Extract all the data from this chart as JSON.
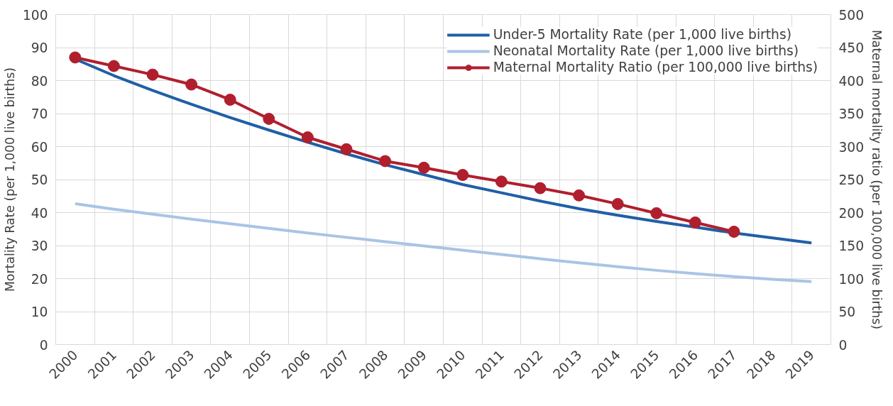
{
  "chart_data": {
    "type": "line",
    "ylabel": "Mortality Rate (per 1,000 live births)",
    "y2label": "Maternal mortality ratio (per 100,000 live births)",
    "categories": [
      "2000",
      "2001",
      "2002",
      "2003",
      "2004",
      "2005",
      "2006",
      "2007",
      "2008",
      "2009",
      "2010",
      "2011",
      "2012",
      "2013",
      "2014",
      "2015",
      "2016",
      "2017",
      "2018",
      "2019"
    ],
    "series": [
      {
        "name": "Under-5 Mortality Rate (per 1,000 live births)",
        "color": "#1f5fa6",
        "marker": "none",
        "values": [
          86.5,
          81.5,
          77,
          72.8,
          68.8,
          65,
          61.3,
          57.8,
          54.5,
          51.5,
          48.5,
          46,
          43.5,
          41.2,
          39.2,
          37.3,
          35.6,
          33.8,
          32.3,
          30.8
        ]
      },
      {
        "name": "Neonatal Mortality Rate (per 1,000 live births)",
        "color": "#a9c4e4",
        "marker": "none",
        "values": [
          42.7,
          41,
          39.5,
          38,
          36.6,
          35.2,
          33.8,
          32.5,
          31.2,
          29.9,
          28.6,
          27.3,
          26,
          24.8,
          23.6,
          22.5,
          21.5,
          20.6,
          19.8,
          19.1
        ]
      },
      {
        "name": "Maternal Mortality Ratio (per 100,000 live births)",
        "color": "#b01f2e",
        "marker": "circle",
        "axis": "y2",
        "values": [
          435,
          422,
          409,
          394,
          371,
          342,
          314,
          296,
          278,
          268,
          257,
          247,
          237,
          226,
          213,
          199,
          185,
          171,
          null,
          null
        ]
      }
    ],
    "ylim": [
      0,
      100
    ],
    "yticks": [
      0,
      10,
      20,
      30,
      40,
      50,
      60,
      70,
      80,
      90,
      100
    ],
    "y2lim": [
      0,
      500
    ],
    "y2ticks": [
      0,
      50,
      100,
      150,
      200,
      250,
      300,
      350,
      400,
      450,
      500
    ],
    "grid": true,
    "legend": "top right",
    "line_style": "solid"
  }
}
